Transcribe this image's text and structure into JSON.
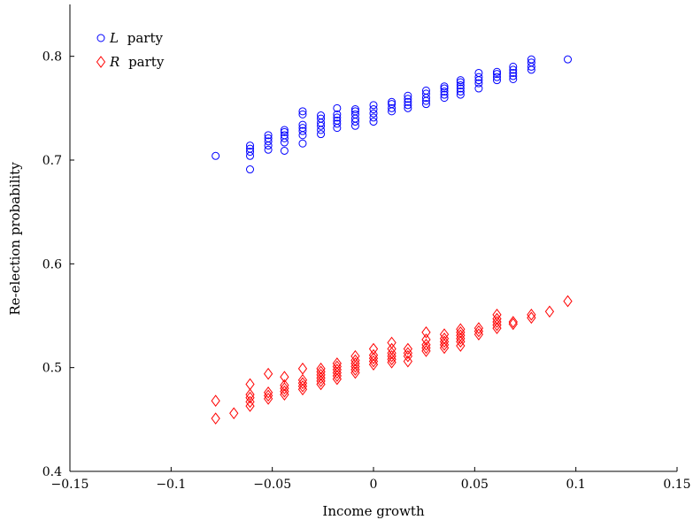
{
  "chart_data": {
    "type": "scatter",
    "title": "",
    "xlabel": "Income growth",
    "ylabel": "Re-election probability",
    "xlim": [
      -0.15,
      0.15
    ],
    "ylim": [
      0.4,
      0.85
    ],
    "xticks": [
      -0.15,
      -0.1,
      -0.05,
      0,
      0.05,
      0.1,
      0.15
    ],
    "xtick_labels": [
      "−0.15",
      "−0.1",
      "−0.05",
      "0",
      "0.05",
      "0.1",
      "0.15"
    ],
    "yticks": [
      0.4,
      0.5,
      0.6,
      0.7,
      0.8
    ],
    "ytick_labels": [
      "0.4",
      "0.5",
      "0.6",
      "0.7",
      "0.8"
    ],
    "grid": false,
    "legend_position": "top-left",
    "series": [
      {
        "name_var": "L",
        "name_rest": "party",
        "marker": "circle",
        "color": "#0000ff",
        "points": [
          [
            -0.078,
            0.704
          ],
          [
            -0.061,
            0.691
          ],
          [
            -0.061,
            0.704
          ],
          [
            -0.061,
            0.708
          ],
          [
            -0.061,
            0.711
          ],
          [
            -0.061,
            0.714
          ],
          [
            -0.052,
            0.71
          ],
          [
            -0.052,
            0.714
          ],
          [
            -0.052,
            0.718
          ],
          [
            -0.052,
            0.721
          ],
          [
            -0.052,
            0.724
          ],
          [
            -0.044,
            0.709
          ],
          [
            -0.044,
            0.717
          ],
          [
            -0.044,
            0.721
          ],
          [
            -0.044,
            0.724
          ],
          [
            -0.044,
            0.727
          ],
          [
            -0.044,
            0.729
          ],
          [
            -0.035,
            0.716
          ],
          [
            -0.035,
            0.724
          ],
          [
            -0.035,
            0.728
          ],
          [
            -0.035,
            0.731
          ],
          [
            -0.035,
            0.734
          ],
          [
            -0.035,
            0.744
          ],
          [
            -0.035,
            0.747
          ],
          [
            -0.026,
            0.725
          ],
          [
            -0.026,
            0.729
          ],
          [
            -0.026,
            0.733
          ],
          [
            -0.026,
            0.736
          ],
          [
            -0.026,
            0.74
          ],
          [
            -0.026,
            0.743
          ],
          [
            -0.018,
            0.731
          ],
          [
            -0.018,
            0.735
          ],
          [
            -0.018,
            0.738
          ],
          [
            -0.018,
            0.741
          ],
          [
            -0.018,
            0.744
          ],
          [
            -0.018,
            0.75
          ],
          [
            -0.009,
            0.733
          ],
          [
            -0.009,
            0.737
          ],
          [
            -0.009,
            0.74
          ],
          [
            -0.009,
            0.744
          ],
          [
            -0.009,
            0.747
          ],
          [
            -0.009,
            0.749
          ],
          [
            0.0,
            0.737
          ],
          [
            0.0,
            0.741
          ],
          [
            0.0,
            0.745
          ],
          [
            0.0,
            0.749
          ],
          [
            0.0,
            0.753
          ],
          [
            0.009,
            0.747
          ],
          [
            0.009,
            0.75
          ],
          [
            0.009,
            0.754
          ],
          [
            0.009,
            0.756
          ],
          [
            0.017,
            0.75
          ],
          [
            0.017,
            0.753
          ],
          [
            0.017,
            0.756
          ],
          [
            0.017,
            0.759
          ],
          [
            0.017,
            0.762
          ],
          [
            0.026,
            0.754
          ],
          [
            0.026,
            0.757
          ],
          [
            0.026,
            0.76
          ],
          [
            0.026,
            0.764
          ],
          [
            0.026,
            0.767
          ],
          [
            0.035,
            0.76
          ],
          [
            0.035,
            0.763
          ],
          [
            0.035,
            0.766
          ],
          [
            0.035,
            0.769
          ],
          [
            0.035,
            0.771
          ],
          [
            0.043,
            0.763
          ],
          [
            0.043,
            0.766
          ],
          [
            0.043,
            0.769
          ],
          [
            0.043,
            0.772
          ],
          [
            0.043,
            0.775
          ],
          [
            0.043,
            0.777
          ],
          [
            0.052,
            0.769
          ],
          [
            0.052,
            0.774
          ],
          [
            0.052,
            0.777
          ],
          [
            0.052,
            0.78
          ],
          [
            0.052,
            0.784
          ],
          [
            0.061,
            0.777
          ],
          [
            0.061,
            0.78
          ],
          [
            0.061,
            0.783
          ],
          [
            0.061,
            0.785
          ],
          [
            0.069,
            0.778
          ],
          [
            0.069,
            0.781
          ],
          [
            0.069,
            0.784
          ],
          [
            0.069,
            0.787
          ],
          [
            0.069,
            0.79
          ],
          [
            0.078,
            0.787
          ],
          [
            0.078,
            0.79
          ],
          [
            0.078,
            0.794
          ],
          [
            0.078,
            0.797
          ],
          [
            0.096,
            0.797
          ]
        ]
      },
      {
        "name_var": "R",
        "name_rest": "party",
        "marker": "diamond",
        "color": "#ff0000",
        "points": [
          [
            -0.078,
            0.451
          ],
          [
            -0.078,
            0.468
          ],
          [
            -0.069,
            0.456
          ],
          [
            -0.061,
            0.463
          ],
          [
            -0.061,
            0.467
          ],
          [
            -0.061,
            0.471
          ],
          [
            -0.061,
            0.474
          ],
          [
            -0.061,
            0.484
          ],
          [
            -0.052,
            0.47
          ],
          [
            -0.052,
            0.473
          ],
          [
            -0.052,
            0.476
          ],
          [
            -0.052,
            0.494
          ],
          [
            -0.044,
            0.474
          ],
          [
            -0.044,
            0.477
          ],
          [
            -0.044,
            0.48
          ],
          [
            -0.044,
            0.483
          ],
          [
            -0.044,
            0.491
          ],
          [
            -0.035,
            0.479
          ],
          [
            -0.035,
            0.482
          ],
          [
            -0.035,
            0.485
          ],
          [
            -0.035,
            0.488
          ],
          [
            -0.035,
            0.499
          ],
          [
            -0.026,
            0.484
          ],
          [
            -0.026,
            0.487
          ],
          [
            -0.026,
            0.49
          ],
          [
            -0.026,
            0.493
          ],
          [
            -0.026,
            0.496
          ],
          [
            -0.026,
            0.499
          ],
          [
            -0.018,
            0.489
          ],
          [
            -0.018,
            0.492
          ],
          [
            -0.018,
            0.495
          ],
          [
            -0.018,
            0.498
          ],
          [
            -0.018,
            0.501
          ],
          [
            -0.018,
            0.504
          ],
          [
            -0.009,
            0.495
          ],
          [
            -0.009,
            0.498
          ],
          [
            -0.009,
            0.501
          ],
          [
            -0.009,
            0.504
          ],
          [
            -0.009,
            0.507
          ],
          [
            -0.009,
            0.511
          ],
          [
            0.0,
            0.503
          ],
          [
            0.0,
            0.506
          ],
          [
            0.0,
            0.509
          ],
          [
            0.0,
            0.512
          ],
          [
            0.0,
            0.518
          ],
          [
            0.009,
            0.505
          ],
          [
            0.009,
            0.508
          ],
          [
            0.009,
            0.511
          ],
          [
            0.009,
            0.514
          ],
          [
            0.009,
            0.518
          ],
          [
            0.009,
            0.524
          ],
          [
            0.017,
            0.506
          ],
          [
            0.017,
            0.511
          ],
          [
            0.017,
            0.514
          ],
          [
            0.017,
            0.518
          ],
          [
            0.026,
            0.516
          ],
          [
            0.026,
            0.519
          ],
          [
            0.026,
            0.522
          ],
          [
            0.026,
            0.527
          ],
          [
            0.026,
            0.534
          ],
          [
            0.035,
            0.519
          ],
          [
            0.035,
            0.522
          ],
          [
            0.035,
            0.525
          ],
          [
            0.035,
            0.528
          ],
          [
            0.035,
            0.532
          ],
          [
            0.043,
            0.521
          ],
          [
            0.043,
            0.525
          ],
          [
            0.043,
            0.528
          ],
          [
            0.043,
            0.531
          ],
          [
            0.043,
            0.534
          ],
          [
            0.043,
            0.537
          ],
          [
            0.052,
            0.532
          ],
          [
            0.052,
            0.535
          ],
          [
            0.052,
            0.538
          ],
          [
            0.061,
            0.538
          ],
          [
            0.061,
            0.541
          ],
          [
            0.061,
            0.544
          ],
          [
            0.061,
            0.547
          ],
          [
            0.061,
            0.551
          ],
          [
            0.069,
            0.542
          ],
          [
            0.069,
            0.544
          ],
          [
            0.078,
            0.548
          ],
          [
            0.078,
            0.551
          ],
          [
            0.087,
            0.554
          ],
          [
            0.096,
            0.564
          ]
        ]
      }
    ]
  }
}
